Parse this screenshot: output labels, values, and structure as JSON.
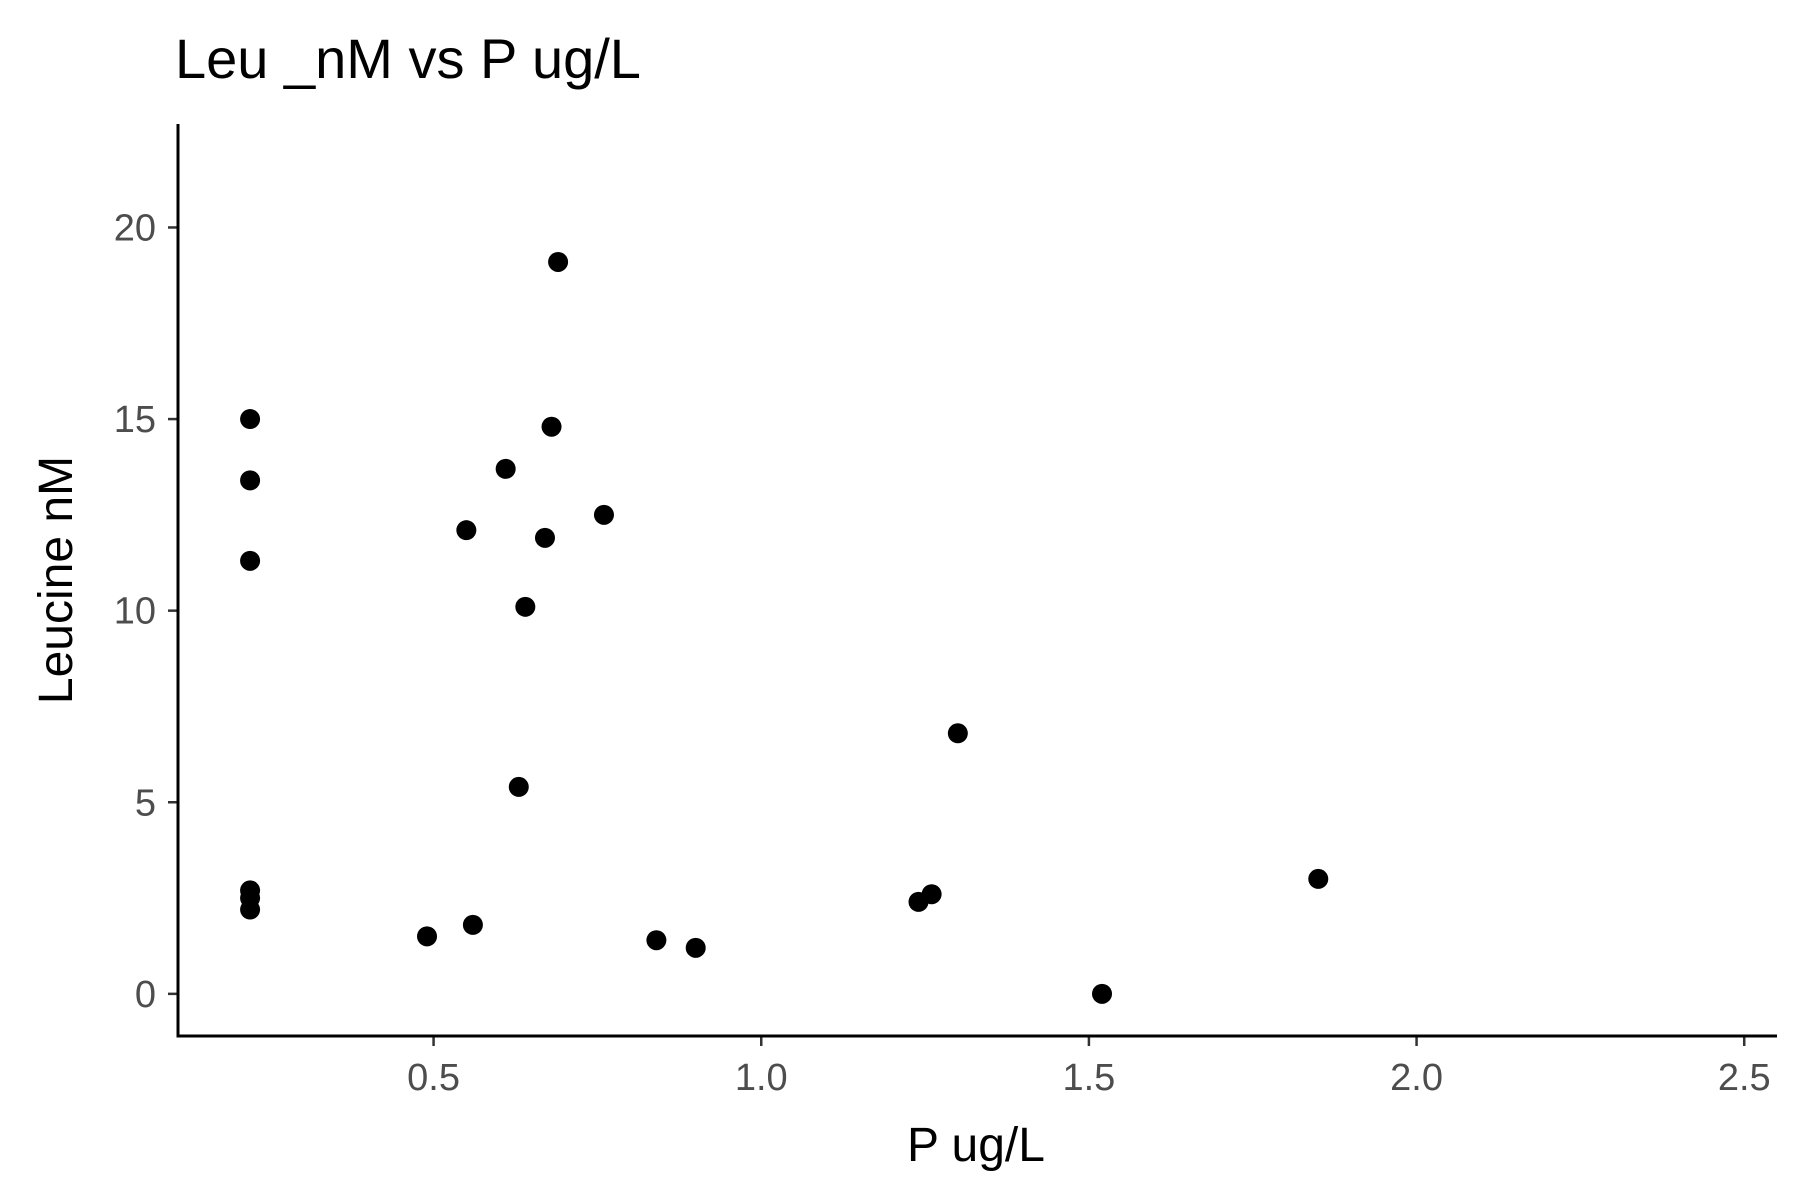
{
  "chart_data": {
    "type": "scatter",
    "title": "Leu _nM vs P ug/L",
    "xlabel": "P ug/L",
    "ylabel": "Leucine nM",
    "xlim": [
      0.11,
      2.55
    ],
    "ylim": [
      -1.1,
      22.7
    ],
    "xticks": [
      0.5,
      1.0,
      1.5,
      2.0,
      2.5
    ],
    "xtick_labels": [
      "0.5",
      "1.0",
      "1.5",
      "2.0",
      "2.5"
    ],
    "yticks": [
      0,
      5,
      10,
      15,
      20
    ],
    "ytick_labels": [
      "0",
      "5",
      "10",
      "15",
      "20"
    ],
    "grid": false,
    "legend": "none",
    "point_color": "#000000",
    "points": [
      {
        "x": 0.22,
        "y": 15.0
      },
      {
        "x": 0.22,
        "y": 13.4
      },
      {
        "x": 0.22,
        "y": 11.3
      },
      {
        "x": 0.22,
        "y": 2.7
      },
      {
        "x": 0.22,
        "y": 2.5
      },
      {
        "x": 0.22,
        "y": 2.2
      },
      {
        "x": 0.49,
        "y": 1.5
      },
      {
        "x": 0.55,
        "y": 12.1
      },
      {
        "x": 0.56,
        "y": 1.8
      },
      {
        "x": 0.61,
        "y": 13.7
      },
      {
        "x": 0.63,
        "y": 5.4
      },
      {
        "x": 0.64,
        "y": 10.1
      },
      {
        "x": 0.67,
        "y": 11.9
      },
      {
        "x": 0.68,
        "y": 14.8
      },
      {
        "x": 0.69,
        "y": 19.1
      },
      {
        "x": 0.76,
        "y": 12.5
      },
      {
        "x": 0.84,
        "y": 1.4
      },
      {
        "x": 0.9,
        "y": 1.2
      },
      {
        "x": 1.24,
        "y": 2.4
      },
      {
        "x": 1.26,
        "y": 2.6
      },
      {
        "x": 1.3,
        "y": 6.8
      },
      {
        "x": 1.52,
        "y": 0.0
      },
      {
        "x": 1.85,
        "y": 3.0
      }
    ]
  }
}
